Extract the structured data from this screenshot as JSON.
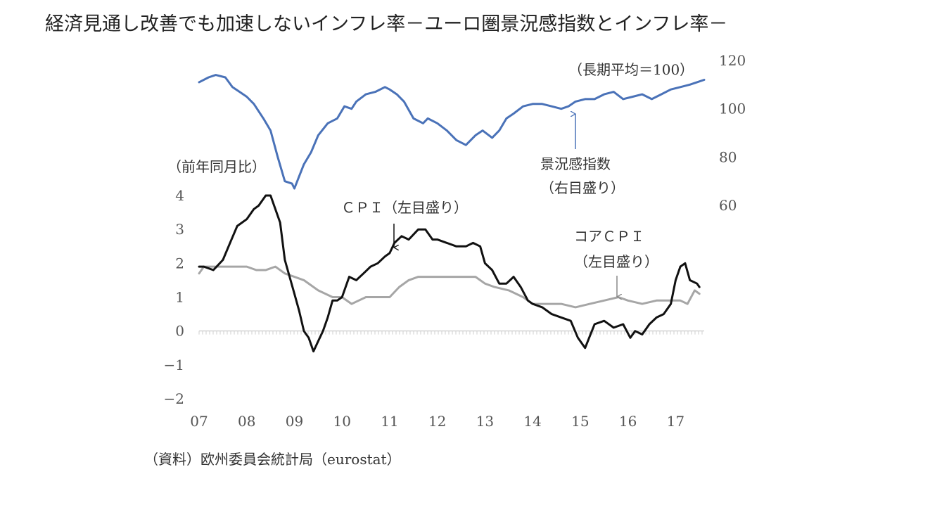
{
  "chart_data": {
    "type": "line",
    "title": "経済見通し改善でも加速しないインフレ率－ユーロ圏景況感指数とインフレ率－",
    "source": "（資料）欧州委員会統計局（eurostat）",
    "left_axis": {
      "label": "（前年同月比）",
      "ticks": [
        "4",
        "3",
        "2",
        "1",
        "0",
        "−1",
        "−2"
      ],
      "ylim": [
        -2,
        4
      ]
    },
    "right_axis": {
      "label": "（長期平均＝100）",
      "ticks": [
        "120",
        "100",
        "80",
        "60"
      ],
      "ylim": [
        20,
        120
      ]
    },
    "x_axis": {
      "ticks": [
        "07",
        "08",
        "09",
        "10",
        "11",
        "12",
        "13",
        "14",
        "15",
        "16",
        "17"
      ],
      "xlim": [
        2007.0,
        2017.6
      ]
    },
    "annotations": {
      "esi": [
        "景況感指数",
        "（右目盛り）"
      ],
      "cpi": [
        "ＣＰＩ（左目盛り）"
      ],
      "core": [
        "コアＣＰＩ",
        "（左目盛り）"
      ]
    },
    "series": [
      {
        "name": "景況感指数（右目盛り）",
        "axis": "right",
        "color": "#4a72b8",
        "x": [
          2007.0,
          2007.2,
          2007.35,
          2007.55,
          2007.7,
          2007.85,
          2008.0,
          2008.15,
          2008.35,
          2008.5,
          2008.65,
          2008.8,
          2008.95,
          2009.0,
          2009.1,
          2009.2,
          2009.35,
          2009.5,
          2009.7,
          2009.9,
          2010.05,
          2010.2,
          2010.3,
          2010.5,
          2010.7,
          2010.9,
          2011.0,
          2011.15,
          2011.3,
          2011.5,
          2011.7,
          2011.8,
          2012.0,
          2012.2,
          2012.4,
          2012.6,
          2012.8,
          2012.95,
          2013.15,
          2013.3,
          2013.45,
          2013.6,
          2013.8,
          2014.0,
          2014.2,
          2014.4,
          2014.6,
          2014.75,
          2014.9,
          2015.1,
          2015.3,
          2015.5,
          2015.7,
          2015.9,
          2016.1,
          2016.3,
          2016.5,
          2016.7,
          2016.9,
          2017.1,
          2017.3,
          2017.45,
          2017.6
        ],
        "values": [
          111,
          113,
          114,
          113,
          109,
          107,
          105,
          102,
          96,
          91,
          80,
          70,
          69,
          67,
          72,
          77,
          82,
          89,
          94,
          96,
          101,
          100,
          103,
          106,
          107,
          109,
          108,
          106,
          103,
          96,
          94,
          96,
          94,
          91,
          87,
          85,
          89,
          91,
          88,
          91,
          96,
          98,
          101,
          102,
          102,
          101,
          100,
          101,
          103,
          104,
          104,
          106,
          107,
          104,
          105,
          106,
          104,
          106,
          108,
          109,
          110,
          111,
          112
        ]
      },
      {
        "name": "ＣＰＩ（左目盛り）",
        "axis": "left",
        "color": "#111111",
        "x": [
          2007.0,
          2007.1,
          2007.3,
          2007.5,
          2007.65,
          2007.8,
          2007.9,
          2008.0,
          2008.15,
          2008.25,
          2008.4,
          2008.5,
          2008.6,
          2008.7,
          2008.8,
          2008.9,
          2009.0,
          2009.1,
          2009.2,
          2009.3,
          2009.4,
          2009.5,
          2009.6,
          2009.7,
          2009.8,
          2009.9,
          2010.0,
          2010.15,
          2010.3,
          2010.45,
          2010.6,
          2010.75,
          2010.9,
          2011.0,
          2011.1,
          2011.25,
          2011.4,
          2011.6,
          2011.75,
          2011.9,
          2012.0,
          2012.2,
          2012.4,
          2012.6,
          2012.75,
          2012.9,
          2013.0,
          2013.15,
          2013.3,
          2013.45,
          2013.6,
          2013.75,
          2013.9,
          2014.0,
          2014.2,
          2014.4,
          2014.6,
          2014.8,
          2014.95,
          2015.1,
          2015.3,
          2015.5,
          2015.7,
          2015.9,
          2016.05,
          2016.15,
          2016.3,
          2016.45,
          2016.6,
          2016.75,
          2016.9,
          2017.0,
          2017.1,
          2017.2,
          2017.3,
          2017.45,
          2017.5
        ],
        "values": [
          1.9,
          1.9,
          1.8,
          2.1,
          2.6,
          3.1,
          3.2,
          3.3,
          3.6,
          3.7,
          4.0,
          4.0,
          3.6,
          3.2,
          2.1,
          1.6,
          1.1,
          0.6,
          0.0,
          -0.2,
          -0.6,
          -0.3,
          0.0,
          0.4,
          0.9,
          0.9,
          1.0,
          1.6,
          1.5,
          1.7,
          1.9,
          2.0,
          2.2,
          2.3,
          2.6,
          2.8,
          2.7,
          3.0,
          3.0,
          2.7,
          2.7,
          2.6,
          2.5,
          2.5,
          2.6,
          2.5,
          2.0,
          1.8,
          1.4,
          1.4,
          1.6,
          1.3,
          0.9,
          0.8,
          0.7,
          0.5,
          0.4,
          0.3,
          -0.2,
          -0.5,
          0.2,
          0.3,
          0.1,
          0.2,
          -0.2,
          0.0,
          -0.1,
          0.2,
          0.4,
          0.5,
          0.8,
          1.5,
          1.9,
          2.0,
          1.5,
          1.4,
          1.3
        ]
      },
      {
        "name": "コアＣＰＩ（左目盛り）",
        "axis": "left",
        "color": "#a6a6a6",
        "x": [
          2007.0,
          2007.1,
          2007.5,
          2008.0,
          2008.2,
          2008.4,
          2008.6,
          2008.8,
          2009.0,
          2009.2,
          2009.5,
          2009.8,
          2010.0,
          2010.2,
          2010.5,
          2010.8,
          2011.0,
          2011.2,
          2011.4,
          2011.6,
          2011.8,
          2012.0,
          2012.3,
          2012.6,
          2012.8,
          2013.0,
          2013.2,
          2013.5,
          2013.8,
          2014.0,
          2014.3,
          2014.6,
          2014.9,
          2015.2,
          2015.5,
          2015.8,
          2016.0,
          2016.3,
          2016.6,
          2016.9,
          2017.1,
          2017.25,
          2017.4,
          2017.5
        ],
        "values": [
          1.7,
          1.9,
          1.9,
          1.9,
          1.8,
          1.8,
          1.9,
          1.7,
          1.6,
          1.5,
          1.2,
          1.0,
          1.0,
          0.8,
          1.0,
          1.0,
          1.0,
          1.3,
          1.5,
          1.6,
          1.6,
          1.6,
          1.6,
          1.6,
          1.6,
          1.4,
          1.3,
          1.2,
          1.0,
          0.8,
          0.8,
          0.8,
          0.7,
          0.8,
          0.9,
          1.0,
          0.9,
          0.8,
          0.9,
          0.9,
          0.9,
          0.8,
          1.2,
          1.1
        ]
      }
    ]
  }
}
